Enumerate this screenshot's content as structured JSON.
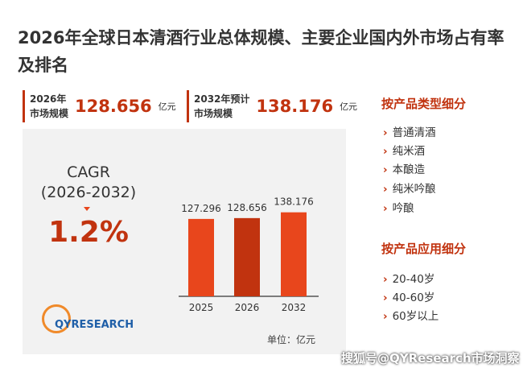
{
  "title": "2026年全球日本清酒行业总体规模、主要企业国内外市场占有率及排名",
  "stats": [
    {
      "label": [
        "2026年",
        "市场规模"
      ],
      "value": 128.656,
      "unit": "亿元"
    },
    {
      "label": [
        "2032年预计",
        "市场规模"
      ],
      "value": 138.176,
      "unit": "亿元"
    }
  ],
  "cagr": {
    "label": "CAGR",
    "period": "(2026-2032)",
    "value": "1.2%"
  },
  "logo": "QYRESEARCH",
  "sidebar": [
    {
      "title": "按产品类型细分",
      "items": [
        "普通清酒",
        "纯米酒",
        "本酿造",
        "纯米吟酿",
        "吟酿"
      ]
    },
    {
      "title": "按产品应用细分",
      "items": [
        "20-40岁",
        "40-60岁",
        "60岁以上"
      ]
    }
  ],
  "watermark": "搜狐号@QYResearch市场洞察",
  "chart_data": {
    "type": "bar",
    "categories": [
      "2025",
      "2026",
      "2032"
    ],
    "values": [
      127.296,
      128.656,
      138.176
    ],
    "colors": [
      "#e8461c",
      "#c1330f",
      "#e8461c"
    ],
    "unit_label": "单位：亿元"
  }
}
